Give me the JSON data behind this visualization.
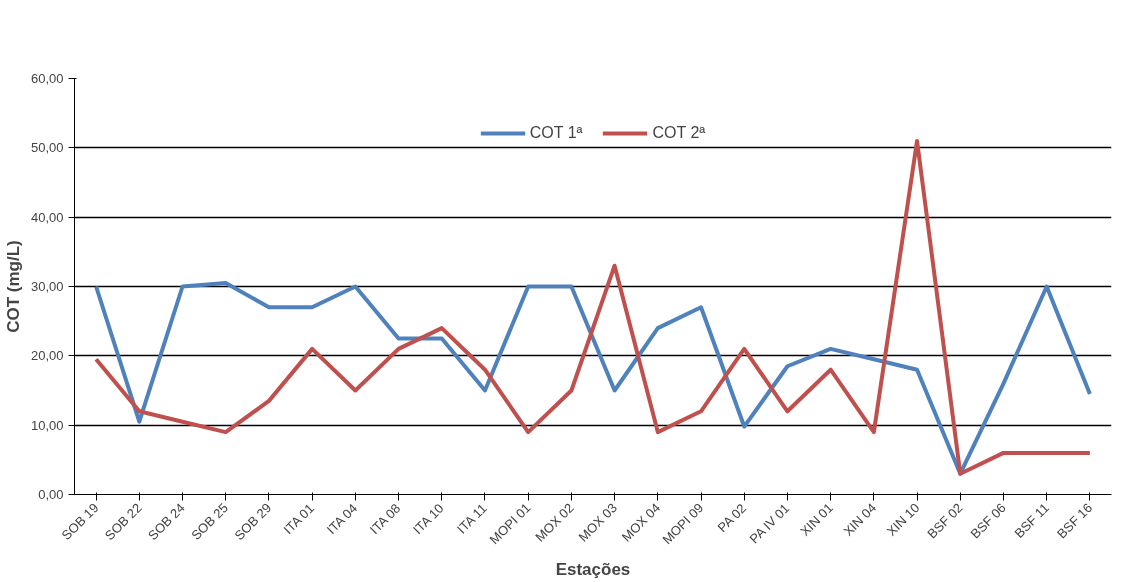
{
  "chart_data": {
    "type": "line",
    "xlabel": "Estações",
    "ylabel": "COT (mg/L)",
    "categories": [
      "SOB 19",
      "SOB 22",
      "SOB 24",
      "SOB 25",
      "SOB 29",
      "ITA 01",
      "ITA 04",
      "ITA 08",
      "ITA 10",
      "ITA 11",
      "MOPI 01",
      "MOX 02",
      "MOX 03",
      "MOX 04",
      "MOPI 09",
      "PA 02",
      "PA IV 01",
      "XIN 01",
      "XIN 04",
      "XIN 10",
      "BSF 02",
      "BSF 06",
      "BSF 11",
      "BSF 16"
    ],
    "series": [
      {
        "name": "COT 1ª",
        "color": "#4f81bd",
        "values": [
          30,
          10.5,
          30,
          30.5,
          27,
          27,
          30,
          22.5,
          22.5,
          15,
          30,
          30,
          15,
          24,
          27,
          9.8,
          18.5,
          21,
          19.5,
          18,
          3,
          16,
          30,
          14.5
        ]
      },
      {
        "name": "COT 2ª",
        "color": "#c0504d",
        "values": [
          19.5,
          12,
          10.5,
          9,
          13.5,
          21,
          15,
          21,
          24,
          18,
          9,
          15,
          33,
          9,
          12,
          21,
          12,
          18,
          9,
          51,
          3,
          6,
          6,
          6
        ]
      }
    ],
    "ylim": [
      0,
      60
    ],
    "yticks": [
      {
        "value": 0,
        "label": "0,00"
      },
      {
        "value": 10,
        "label": "10,00"
      },
      {
        "value": 20,
        "label": "20,00"
      },
      {
        "value": 30,
        "label": "30,00"
      },
      {
        "value": 40,
        "label": "40,00"
      },
      {
        "value": 50,
        "label": "50,00"
      },
      {
        "value": 60,
        "label": "60,00"
      }
    ],
    "grid": "y",
    "legend": "top",
    "marker": "none",
    "line_style": "solid"
  }
}
